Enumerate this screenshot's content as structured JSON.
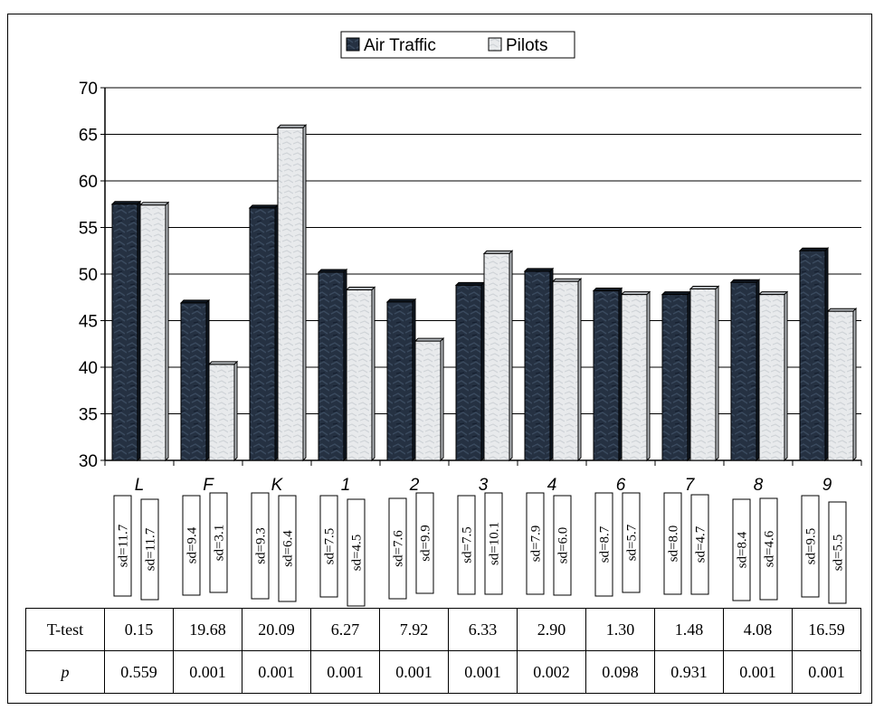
{
  "chart_data": {
    "type": "bar",
    "categories": [
      "L",
      "F",
      "K",
      "1",
      "2",
      "3",
      "4",
      "6",
      "7",
      "8",
      "9"
    ],
    "series": [
      {
        "name": "Air Traffic",
        "values": [
          57.5,
          46.9,
          57.1,
          50.2,
          47.0,
          48.8,
          50.3,
          48.2,
          47.8,
          49.1,
          52.5
        ],
        "sd_labels": [
          "sd=11.7",
          "sd=9.4",
          "sd=9.3",
          "sd=7.5",
          "sd=7.6",
          "sd=7.5",
          "sd=7.9",
          "sd=8.7",
          "sd=8.0",
          "sd=8.4",
          "sd=9.5"
        ]
      },
      {
        "name": "Pilots",
        "values": [
          57.4,
          40.3,
          65.7,
          48.3,
          42.8,
          52.2,
          49.2,
          47.8,
          48.4,
          47.8,
          46.0
        ],
        "sd_labels": [
          "sd=11.7",
          "sd=3.1",
          "sd=6.4",
          "sd=4.5",
          "sd=9.9",
          "sd=10.1",
          "sd=6.0",
          "sd=5.7",
          "sd=4.7",
          "sd=4.6",
          "sd=5.5"
        ]
      }
    ],
    "yticks": [
      30,
      35,
      40,
      45,
      50,
      55,
      60,
      65,
      70
    ],
    "ylim": [
      30,
      70
    ],
    "grid": true,
    "legend": "top-center"
  },
  "table": {
    "rows": [
      {
        "label": "T-test",
        "values": [
          "0.15",
          "19.68",
          "20.09",
          "6.27",
          "7.92",
          "6.33",
          "2.90",
          "1.30",
          "1.48",
          "4.08",
          "16.59"
        ]
      },
      {
        "label": "p",
        "values": [
          "0.559",
          "0.001",
          "0.001",
          "0.001",
          "0.001",
          "0.001",
          "0.002",
          "0.098",
          "0.931",
          "0.001",
          "0.001"
        ]
      }
    ]
  },
  "colors": {
    "air_traffic": "#243040",
    "pilots": "#e6e8ea"
  }
}
